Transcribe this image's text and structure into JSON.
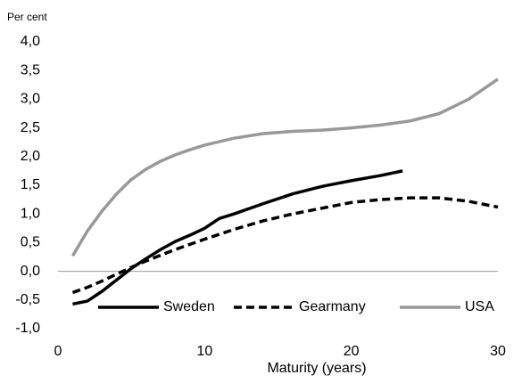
{
  "chart_data": {
    "type": "line",
    "y_axis_label": "Per cent",
    "x_axis_label": "Maturity (years)",
    "xlim": [
      0,
      30
    ],
    "xticks": [
      0,
      10,
      20,
      30
    ],
    "ylim": [
      -1,
      4
    ],
    "yticks": [
      {
        "value": -1,
        "label": "-1,0"
      },
      {
        "value": -0.5,
        "label": "-0,5"
      },
      {
        "value": 0,
        "label": "0,0"
      },
      {
        "value": 0.5,
        "label": "0,5"
      },
      {
        "value": 1,
        "label": "1,0"
      },
      {
        "value": 1.5,
        "label": "1,5"
      },
      {
        "value": 2,
        "label": "2,0"
      },
      {
        "value": 2.5,
        "label": "2,5"
      },
      {
        "value": 3,
        "label": "3,0"
      },
      {
        "value": 3.5,
        "label": "3,5"
      },
      {
        "value": 4,
        "label": "4,0"
      }
    ],
    "legend": "bottom",
    "series": [
      {
        "name": "Sweden",
        "color": "#000000",
        "dash": "solid",
        "x": [
          1,
          2,
          3,
          4,
          5,
          6,
          7,
          8,
          9,
          10,
          11,
          12,
          14,
          16,
          18,
          20,
          22,
          23.5
        ],
        "values": [
          -0.57,
          -0.52,
          -0.35,
          -0.15,
          0.05,
          0.22,
          0.38,
          0.52,
          0.63,
          0.75,
          0.92,
          1.0,
          1.18,
          1.35,
          1.48,
          1.58,
          1.67,
          1.75
        ]
      },
      {
        "name": "Gearmany",
        "color": "#000000",
        "dash": "dashed",
        "x": [
          1,
          2,
          3,
          4,
          5,
          6,
          8,
          10,
          12,
          14,
          16,
          18,
          20,
          22,
          24,
          26,
          28,
          30
        ],
        "values": [
          -0.37,
          -0.28,
          -0.17,
          -0.05,
          0.07,
          0.18,
          0.38,
          0.56,
          0.73,
          0.88,
          1.0,
          1.1,
          1.2,
          1.25,
          1.28,
          1.28,
          1.22,
          1.12
        ]
      },
      {
        "name": "USA",
        "color": "#999999",
        "dash": "solid",
        "x": [
          1,
          2,
          3,
          4,
          5,
          6,
          7,
          8,
          9,
          10,
          12,
          14,
          16,
          18,
          20,
          22,
          24,
          26,
          28,
          30
        ],
        "values": [
          0.27,
          0.7,
          1.05,
          1.35,
          1.6,
          1.78,
          1.92,
          2.03,
          2.12,
          2.2,
          2.32,
          2.4,
          2.44,
          2.46,
          2.5,
          2.55,
          2.62,
          2.75,
          3.0,
          3.35
        ]
      }
    ]
  }
}
